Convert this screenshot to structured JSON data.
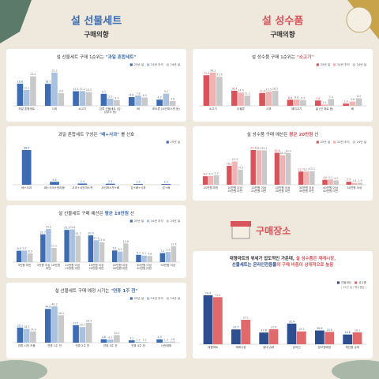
{
  "left_header": {
    "title": "설 선물세트",
    "subtitle": "구매의향"
  },
  "right_header": {
    "title": "설 성수품",
    "subtitle": "구매의향"
  },
  "place_section": {
    "title": "구매장소",
    "description": [
      "대형마트의 위세가 압도적인 가운데, ",
      "설 성수품은 재래시장,",
      "선물세트는 온라인전용몰",
      "의 구매 비중이 상대적으로 높음"
    ]
  },
  "chart_data": [
    {
      "type": "bar",
      "title": [
        "설 선물세트 구매 1순위는 ",
        "\"과일 혼합세트\""
      ],
      "categories": [
        "과일 혼합세트",
        "사과",
        "소고기",
        "김류 선물세트 (김·김부각 등)",
        "배",
        "포도류 (샤인머스캣 등)"
      ],
      "series": [
        {
          "name": "25년 설",
          "color": "#3d6cb3",
          "values": [
            16.8,
            16.7,
            11.1,
            9.1,
            6.6,
            4.7
          ]
        },
        {
          "name": "24년 추석",
          "color": "#a9c1e0",
          "values": [
            12.1,
            25.2,
            11.2,
            5.5,
            7.8,
            9.2
          ]
        },
        {
          "name": "24년 설",
          "color": "#c9c9c9",
          "values": [
            22.4,
            9.6,
            10.5,
            4.3,
            6.3,
            3.6
          ]
        }
      ]
    },
    {
      "type": "bar",
      "title": [
        "과일 혼합세트 구성은 ",
        "\"배+사과\"",
        " 를 선호"
      ],
      "categories": [
        "배+사과",
        "배+사과+한라봉",
        "사과+샤인머스캣",
        "샤인머스캣+배",
        "감+배+사과",
        "감+배"
      ],
      "series": [
        {
          "name": "25년 설",
          "color": "#3d6cb3",
          "values": [
            68.8,
            5.8,
            2.4,
            2.1,
            1.5,
            1.5
          ]
        }
      ]
    },
    {
      "type": "bar",
      "title": [
        "설 선물세트 구매 예산은 ",
        "평균 19만원",
        " 선"
      ],
      "categories": [
        "5만원 미만",
        "5만원 이상 10만원 미만",
        "10만원 이상 15만원 미만",
        "15만원 이상 20만원 미만",
        "20만원 이상 30만원 미만",
        "30만원 이상 50만원 미만",
        "50만원 이상"
      ],
      "series": [
        {
          "name": "25년 설",
          "color": "#3d6cb3",
          "values": [
            8.9,
            21.7,
            25.2,
            20.9,
            9.1,
            5.7,
            7.1
          ]
        },
        {
          "name": "24년 추석",
          "color": "#a9c1e0",
          "values": [
            9.1,
            25.9,
            25.6,
            17.1,
            8.2,
            5.1,
            7.9
          ]
        },
        {
          "name": "24년 설",
          "color": "#c9c9c9",
          "values": [
            6.9,
            11.1,
            20.7,
            15.6,
            14.6,
            4.8,
            12.4
          ]
        }
      ]
    },
    {
      "type": "bar",
      "title": [
        "설 선물세트 구매 예정 시기는 ",
        "\"연휴 1주 전\""
      ],
      "categories": [
        "연휴 시작 즈음",
        "연휴 1주 전",
        "연휴 2주 전",
        "연휴 3주 전",
        "연휴 4주 전",
        "사전예매"
      ],
      "series": [
        {
          "name": "25년 설",
          "color": "#3d6cb3",
          "values": [
            20.1,
            44.8,
            23.1,
            4.6,
            3.2,
            4.5
          ]
        },
        {
          "name": "24년 추석",
          "color": "#a9c1e0",
          "values": [
            18.3,
            48.2,
            20.7,
            4.1,
            1.3,
            1.3
          ]
        },
        {
          "name": "24년 설",
          "color": "#c9c9c9",
          "values": [
            14.9,
            36.4,
            26.4,
            10.1,
            1.1,
            1.6
          ]
        }
      ]
    },
    {
      "type": "bar",
      "title": [
        "설 성수품 구매 1순위는 ",
        "\"소고기\""
      ],
      "categories": [
        "소고기",
        "나물류",
        "사과",
        "돼지고기",
        "굴 (전 재료 등)",
        "배"
      ],
      "series": [
        {
          "name": "25년 설",
          "color": "#d9535a",
          "values": [
            33.3,
            16.4,
            13.9,
            6.6,
            5.8,
            2.4
          ]
        },
        {
          "name": "24년 추석",
          "color": "#f0b3b3",
          "values": [
            36.1,
            14.4,
            15.5,
            6.8,
            1.4,
            4.6
          ]
        },
        {
          "name": "24년 설",
          "color": "#c9c9c9",
          "values": [
            31.6,
            11.1,
            16.5,
            6.2,
            7.4,
            8.2
          ]
        }
      ]
    },
    {
      "type": "bar",
      "title": [
        "설 성수품 구매 예산은 ",
        "평균 20만원",
        " 선"
      ],
      "categories": [
        "10만원 미만",
        "10만원 이상 15만원 미만",
        "15만원 이상 20만원 미만",
        "20만원 이상 30만원 미만",
        "30만원 이상 40만원 미만",
        "40만원 이상 50만원 미만",
        "50만원 이상"
      ],
      "series": [
        {
          "name": "25년 설",
          "color": "#d9535a",
          "values": [
            8.2,
            18.2,
            33.4,
            30.8,
            12.7,
            4.8,
            2.9
          ]
        },
        {
          "name": "24년 추석",
          "color": "#f0b3b3",
          "values": [
            8.4,
            22.3,
            33.1,
            28.4,
            12.7,
            5.1,
            1.8
          ]
        },
        {
          "name": "24년 설",
          "color": "#c9c9c9",
          "values": [
            9.2,
            14.5,
            33.1,
            30.4,
            13.1,
            4.2,
            1.9
          ]
        }
      ]
    },
    {
      "type": "bar",
      "note": "( 25년 설 / 복수응답 )",
      "categories": [
        "대형마트",
        "재래시장",
        "동네 슈퍼",
        "온라인",
        "창고형매장",
        "체인형 슈퍼"
      ],
      "series": [
        {
          "name": "선물세트",
          "color": "#2e4f8f",
          "values": [
            74.3,
            22.5,
            17.8,
            31.4,
            20.9,
            14.8
          ]
        },
        {
          "name": "성수품",
          "color": "#e0696b",
          "values": [
            71.5,
            37.1,
            22.8,
            19.5,
            18.8,
            18.1
          ]
        }
      ]
    }
  ]
}
